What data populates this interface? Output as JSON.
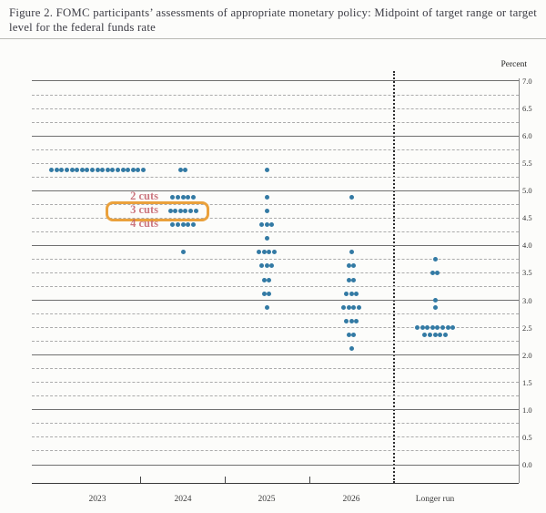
{
  "page": {
    "title": "Figure 2.  FOMC participants’ assessments of appropriate monetary policy:  Midpoint of target range or target level for the federal funds rate"
  },
  "chart_data": {
    "type": "scatter",
    "subtype": "fomc-dot-plot",
    "title": "Figure 2. FOMC participants’ assessments of appropriate monetary policy: Midpoint of target range or target level for the federal funds rate",
    "ylabel": "Percent",
    "ylim": [
      0.0,
      7.0
    ],
    "y_label_step": 0.5,
    "y_grid_step": 0.25,
    "y_tick_labels": [
      "7.0",
      "6.5",
      "6.0",
      "5.5",
      "5.0",
      "4.5",
      "4.0",
      "3.5",
      "3.0",
      "2.5",
      "2.0",
      "1.5",
      "1.0",
      "0.5",
      "0.0"
    ],
    "categories": [
      "2023",
      "2024",
      "2025",
      "2026",
      "Longer run"
    ],
    "grid": "dashed lines every 0.25 pct pt, solid lines at whole percents",
    "legend_position": "none",
    "divider": "dotted vertical line separating projection years from Longer run",
    "series": [
      {
        "category": "2023",
        "dots": [
          [
            5.375,
            19
          ]
        ]
      },
      {
        "category": "2024",
        "dots": [
          [
            5.375,
            2
          ],
          [
            4.875,
            5
          ],
          [
            4.625,
            6
          ],
          [
            4.375,
            5
          ],
          [
            3.875,
            1
          ]
        ]
      },
      {
        "category": "2025",
        "dots": [
          [
            5.375,
            1
          ],
          [
            4.875,
            1
          ],
          [
            4.625,
            1
          ],
          [
            4.375,
            3
          ],
          [
            4.125,
            1
          ],
          [
            3.875,
            4
          ],
          [
            3.625,
            3
          ],
          [
            3.375,
            2
          ],
          [
            3.125,
            2
          ],
          [
            2.875,
            1
          ]
        ]
      },
      {
        "category": "2026",
        "dots": [
          [
            4.875,
            1
          ],
          [
            3.875,
            1
          ],
          [
            3.625,
            2
          ],
          [
            3.375,
            2
          ],
          [
            3.125,
            3
          ],
          [
            2.875,
            4
          ],
          [
            2.625,
            3
          ],
          [
            2.375,
            2
          ],
          [
            2.125,
            1
          ]
        ]
      },
      {
        "category": "Longer run",
        "dots": [
          [
            3.75,
            1
          ],
          [
            3.5,
            2
          ],
          [
            3.0,
            1
          ],
          [
            2.875,
            1
          ],
          [
            2.5,
            8
          ],
          [
            2.375,
            5
          ]
        ]
      }
    ],
    "annotations": [
      {
        "label": "2 cuts",
        "category": "2024",
        "value": 4.875,
        "boxed": false
      },
      {
        "label": "3 cuts",
        "category": "2024",
        "value": 4.625,
        "boxed": true
      },
      {
        "label": "4 cuts",
        "category": "2024",
        "value": 4.375,
        "boxed": false
      }
    ],
    "colors": {
      "dot": "#337aa4",
      "annotation_text": "#c25b66",
      "annotation_box": "#eaa13c"
    }
  }
}
